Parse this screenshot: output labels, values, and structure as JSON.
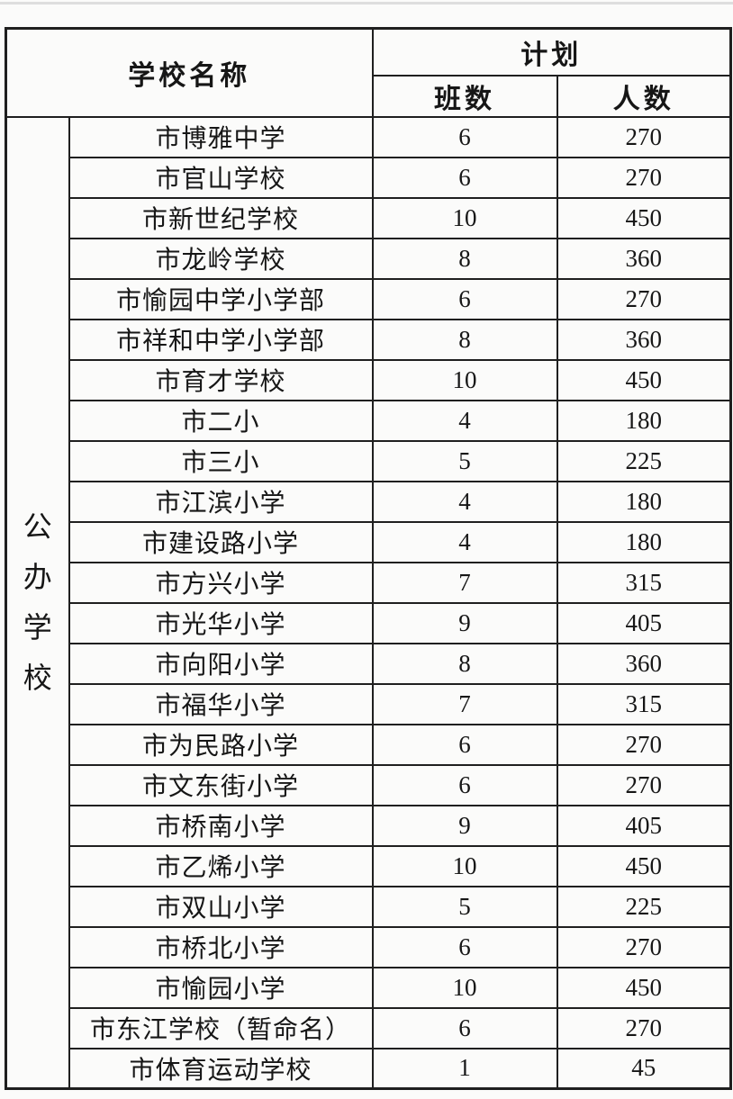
{
  "colors": {
    "border": "#1f1f1f",
    "text": "#161616",
    "background": "#fbfbfa"
  },
  "table": {
    "header": {
      "school_name": "学校名称",
      "plan": "计划",
      "classes": "班数",
      "students": "人数"
    },
    "category": {
      "label": "公办学校"
    },
    "rows": [
      {
        "school": "市博雅中学",
        "classes": "6",
        "students": "270"
      },
      {
        "school": "市官山学校",
        "classes": "6",
        "students": "270"
      },
      {
        "school": "市新世纪学校",
        "classes": "10",
        "students": "450"
      },
      {
        "school": "市龙岭学校",
        "classes": "8",
        "students": "360"
      },
      {
        "school": "市愉园中学小学部",
        "classes": "6",
        "students": "270"
      },
      {
        "school": "市祥和中学小学部",
        "classes": "8",
        "students": "360"
      },
      {
        "school": "市育才学校",
        "classes": "10",
        "students": "450"
      },
      {
        "school": "市二小",
        "classes": "4",
        "students": "180"
      },
      {
        "school": "市三小",
        "classes": "5",
        "students": "225"
      },
      {
        "school": "市江滨小学",
        "classes": "4",
        "students": "180"
      },
      {
        "school": "市建设路小学",
        "classes": "4",
        "students": "180"
      },
      {
        "school": "市方兴小学",
        "classes": "7",
        "students": "315"
      },
      {
        "school": "市光华小学",
        "classes": "9",
        "students": "405"
      },
      {
        "school": "市向阳小学",
        "classes": "8",
        "students": "360"
      },
      {
        "school": "市福华小学",
        "classes": "7",
        "students": "315"
      },
      {
        "school": "市为民路小学",
        "classes": "6",
        "students": "270"
      },
      {
        "school": "市文东街小学",
        "classes": "6",
        "students": "270"
      },
      {
        "school": "市桥南小学",
        "classes": "9",
        "students": "405"
      },
      {
        "school": "市乙烯小学",
        "classes": "10",
        "students": "450"
      },
      {
        "school": "市双山小学",
        "classes": "5",
        "students": "225"
      },
      {
        "school": "市桥北小学",
        "classes": "6",
        "students": "270"
      },
      {
        "school": "市愉园小学",
        "classes": "10",
        "students": "450"
      },
      {
        "school": "市东江学校（暂命名）",
        "classes": "6",
        "students": "270"
      },
      {
        "school": "市体育运动学校",
        "classes": "1",
        "students": "45"
      }
    ]
  }
}
